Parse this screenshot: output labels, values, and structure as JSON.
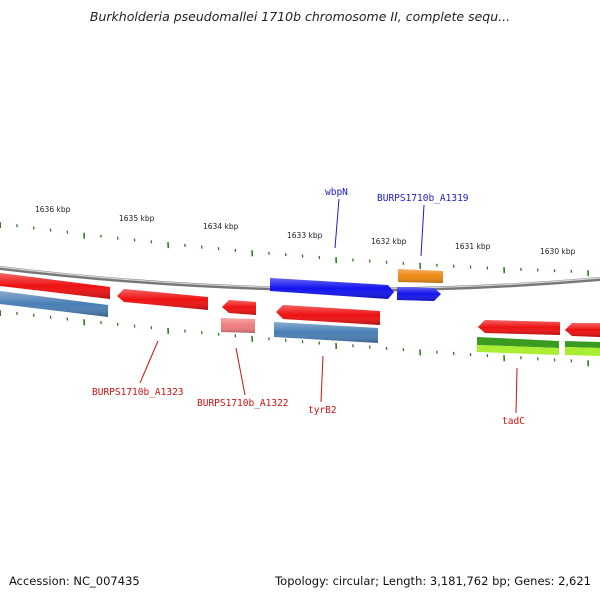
{
  "title": "Burkholderia pseudomallei 1710b chromosome II, complete sequ...",
  "footer": {
    "accession": "Accession: NC_007435",
    "summary": "Topology: circular; Length: 3,181,762 bp; Genes: 2,621"
  },
  "colors": {
    "backbone": "#8c8c8c",
    "tick": "#2e7d1f",
    "red": "#ee1111",
    "red_light": "#f07c7c",
    "steel_blue": "#4a7fb5",
    "blue": "#1313ee",
    "orange": "#ee8811",
    "green": "#3a9a22",
    "lime": "#aaee33",
    "label_blue": "#1a1acc",
    "label_red": "#cc1111"
  },
  "scale_labels": [
    "1636 kbp",
    "1635 kbp",
    "1634 kbp",
    "1633 kbp",
    "1632 kbp",
    "1631 kbp",
    "1630 kbp"
  ],
  "gene_labels": {
    "wbpN": "wbpN",
    "a1319": "BURPS1710b_A1319",
    "a1323": "BURPS1710b_A1323",
    "a1322": "BURPS1710b_A1322",
    "tyrB2": "tyrB2",
    "tadC": "tadC"
  }
}
